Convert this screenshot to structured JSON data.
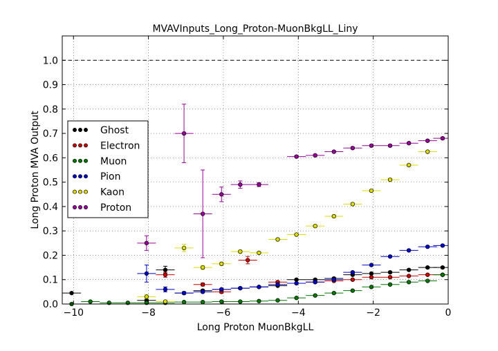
{
  "chart_data": {
    "type": "scatter",
    "title": "MVAVInputs_Long_Proton-MuonBkgLL_Liny",
    "xlabel": "Long Proton MuonBkgLL",
    "ylabel": "Long Proton MVA Output",
    "xlim": [
      -10.3,
      0
    ],
    "ylim": [
      0,
      1.1
    ],
    "x_ticks": [
      -10,
      -8,
      -6,
      -4,
      -2,
      0
    ],
    "x_tick_labels": [
      "−10",
      "−8",
      "−6",
      "−4",
      "−2",
      "0"
    ],
    "y_ticks": [
      0.0,
      0.1,
      0.2,
      0.3,
      0.4,
      0.5,
      0.6,
      0.7,
      0.8,
      0.9,
      1.0
    ],
    "y_tick_labels": [
      "0.0",
      "0.1",
      "0.2",
      "0.3",
      "0.4",
      "0.5",
      "0.6",
      "0.7",
      "0.8",
      "0.9",
      "1.0"
    ],
    "grid": true,
    "reference_line": 1.0,
    "legend_placement": "center-left",
    "bin_half_width": 0.25,
    "series": [
      {
        "name": "Ghost",
        "color": "#000000",
        "points": [
          {
            "x": -10.05,
            "y": 0.045,
            "err": 0
          },
          {
            "x": -8.05,
            "y": 0.015,
            "err": 0.005
          },
          {
            "x": -7.55,
            "y": 0.14,
            "err": 0.015
          },
          {
            "x": -7.05,
            "y": 0.045,
            "err": 0.004
          },
          {
            "x": -6.55,
            "y": 0.055,
            "err": 0.004
          },
          {
            "x": -6.05,
            "y": 0.06,
            "err": 0.003
          },
          {
            "x": -5.55,
            "y": 0.065,
            "err": 0.003
          },
          {
            "x": -5.05,
            "y": 0.07,
            "err": 0.003
          },
          {
            "x": -4.55,
            "y": 0.075,
            "err": 0.003
          },
          {
            "x": -4.05,
            "y": 0.1,
            "err": 0.003
          },
          {
            "x": -3.55,
            "y": 0.1,
            "err": 0.003
          },
          {
            "x": -3.05,
            "y": 0.105,
            "err": 0.003
          },
          {
            "x": -2.55,
            "y": 0.12,
            "err": 0.003
          },
          {
            "x": -2.05,
            "y": 0.125,
            "err": 0.003
          },
          {
            "x": -1.55,
            "y": 0.13,
            "err": 0.003
          },
          {
            "x": -1.05,
            "y": 0.14,
            "err": 0.003
          },
          {
            "x": -0.55,
            "y": 0.15,
            "err": 0.003
          },
          {
            "x": -0.15,
            "y": 0.15,
            "err": 0.003
          }
        ]
      },
      {
        "name": "Electron",
        "color": "#cc0000",
        "points": [
          {
            "x": -7.55,
            "y": 0.12,
            "err": 0.01
          },
          {
            "x": -6.55,
            "y": 0.08,
            "err": 0.006
          },
          {
            "x": -6.05,
            "y": 0.05,
            "err": 0.005
          },
          {
            "x": -5.35,
            "y": 0.18,
            "err": 0.015
          },
          {
            "x": -4.55,
            "y": 0.09,
            "err": 0.004
          },
          {
            "x": -3.55,
            "y": 0.09,
            "err": 0.003
          },
          {
            "x": -3.05,
            "y": 0.095,
            "err": 0.003
          },
          {
            "x": -2.55,
            "y": 0.1,
            "err": 0.003
          },
          {
            "x": -2.05,
            "y": 0.11,
            "err": 0.003
          },
          {
            "x": -1.55,
            "y": 0.11,
            "err": 0.003
          },
          {
            "x": -1.05,
            "y": 0.115,
            "err": 0.003
          },
          {
            "x": -0.55,
            "y": 0.12,
            "err": 0.003
          },
          {
            "x": -0.15,
            "y": 0.12,
            "err": 0.003
          }
        ]
      },
      {
        "name": "Muon",
        "color": "#007700",
        "points": [
          {
            "x": -10.05,
            "y": 0.0,
            "err": 0
          },
          {
            "x": -9.55,
            "y": 0.01,
            "err": 0
          },
          {
            "x": -9.05,
            "y": 0.005,
            "err": 0
          },
          {
            "x": -8.55,
            "y": 0.005,
            "err": 0
          },
          {
            "x": -8.05,
            "y": 0.005,
            "err": 0
          },
          {
            "x": -7.55,
            "y": 0.005,
            "err": 0
          },
          {
            "x": -7.05,
            "y": 0.008,
            "err": 0
          },
          {
            "x": -6.55,
            "y": 0.008,
            "err": 0
          },
          {
            "x": -6.05,
            "y": 0.01,
            "err": 0
          },
          {
            "x": -5.55,
            "y": 0.01,
            "err": 0
          },
          {
            "x": -5.05,
            "y": 0.012,
            "err": 0
          },
          {
            "x": -4.55,
            "y": 0.015,
            "err": 0
          },
          {
            "x": -4.05,
            "y": 0.025,
            "err": 0.002
          },
          {
            "x": -3.55,
            "y": 0.035,
            "err": 0.002
          },
          {
            "x": -3.05,
            "y": 0.045,
            "err": 0.002
          },
          {
            "x": -2.55,
            "y": 0.055,
            "err": 0.002
          },
          {
            "x": -2.05,
            "y": 0.07,
            "err": 0.002
          },
          {
            "x": -1.55,
            "y": 0.08,
            "err": 0.002
          },
          {
            "x": -1.05,
            "y": 0.09,
            "err": 0.002
          },
          {
            "x": -0.55,
            "y": 0.095,
            "err": 0.002
          },
          {
            "x": -0.15,
            "y": 0.12,
            "err": 0.002
          }
        ]
      },
      {
        "name": "Pion",
        "color": "#0000cc",
        "points": [
          {
            "x": -8.05,
            "y": 0.125,
            "err": 0.035
          },
          {
            "x": -7.55,
            "y": 0.06,
            "err": 0.01
          },
          {
            "x": -7.05,
            "y": 0.045,
            "err": 0.005
          },
          {
            "x": -6.55,
            "y": 0.05,
            "err": 0.004
          },
          {
            "x": -6.05,
            "y": 0.06,
            "err": 0.004
          },
          {
            "x": -5.55,
            "y": 0.065,
            "err": 0.003
          },
          {
            "x": -5.05,
            "y": 0.07,
            "err": 0.003
          },
          {
            "x": -4.55,
            "y": 0.08,
            "err": 0.003
          },
          {
            "x": -4.05,
            "y": 0.085,
            "err": 0.003
          },
          {
            "x": -3.55,
            "y": 0.09,
            "err": 0.003
          },
          {
            "x": -3.05,
            "y": 0.1,
            "err": 0.003
          },
          {
            "x": -2.55,
            "y": 0.13,
            "err": 0.003
          },
          {
            "x": -2.05,
            "y": 0.16,
            "err": 0.003
          },
          {
            "x": -1.55,
            "y": 0.195,
            "err": 0.003
          },
          {
            "x": -1.05,
            "y": 0.22,
            "err": 0.003
          },
          {
            "x": -0.55,
            "y": 0.235,
            "err": 0.003
          },
          {
            "x": -0.15,
            "y": 0.24,
            "err": 0.003
          }
        ]
      },
      {
        "name": "Kaon",
        "color": "#dddd00",
        "points": [
          {
            "x": -8.05,
            "y": 0.03,
            "err": 0.008
          },
          {
            "x": -7.55,
            "y": 0.01,
            "err": 0.004
          },
          {
            "x": -7.05,
            "y": 0.23,
            "err": 0.015
          },
          {
            "x": -6.55,
            "y": 0.15,
            "err": 0.008
          },
          {
            "x": -6.05,
            "y": 0.165,
            "err": 0.006
          },
          {
            "x": -5.55,
            "y": 0.215,
            "err": 0.006
          },
          {
            "x": -5.05,
            "y": 0.21,
            "err": 0.005
          },
          {
            "x": -4.55,
            "y": 0.265,
            "err": 0.004
          },
          {
            "x": -4.05,
            "y": 0.285,
            "err": 0.004
          },
          {
            "x": -3.55,
            "y": 0.32,
            "err": 0.004
          },
          {
            "x": -3.05,
            "y": 0.36,
            "err": 0.004
          },
          {
            "x": -2.55,
            "y": 0.41,
            "err": 0.004
          },
          {
            "x": -2.05,
            "y": 0.465,
            "err": 0.004
          },
          {
            "x": -1.55,
            "y": 0.51,
            "err": 0.004
          },
          {
            "x": -1.05,
            "y": 0.57,
            "err": 0.004
          },
          {
            "x": -0.55,
            "y": 0.625,
            "err": 0.004
          }
        ]
      },
      {
        "name": "Proton",
        "color": "#990099",
        "points": [
          {
            "x": -8.05,
            "y": 0.25,
            "err": 0.03
          },
          {
            "x": -7.05,
            "y": 0.7,
            "err": 0.12
          },
          {
            "x": -6.55,
            "y": 0.37,
            "err": 0.18
          },
          {
            "x": -6.05,
            "y": 0.45,
            "err": 0.03
          },
          {
            "x": -5.55,
            "y": 0.49,
            "err": 0.015
          },
          {
            "x": -5.05,
            "y": 0.49,
            "err": 0.008
          },
          {
            "x": -4.05,
            "y": 0.605,
            "err": 0.004
          },
          {
            "x": -3.55,
            "y": 0.61,
            "err": 0.004
          },
          {
            "x": -3.05,
            "y": 0.625,
            "err": 0.004
          },
          {
            "x": -2.55,
            "y": 0.64,
            "err": 0.004
          },
          {
            "x": -2.05,
            "y": 0.65,
            "err": 0.004
          },
          {
            "x": -1.55,
            "y": 0.65,
            "err": 0.004
          },
          {
            "x": -1.05,
            "y": 0.66,
            "err": 0.004
          },
          {
            "x": -0.55,
            "y": 0.67,
            "err": 0.004
          },
          {
            "x": -0.15,
            "y": 0.68,
            "err": 0.004
          }
        ]
      }
    ]
  }
}
